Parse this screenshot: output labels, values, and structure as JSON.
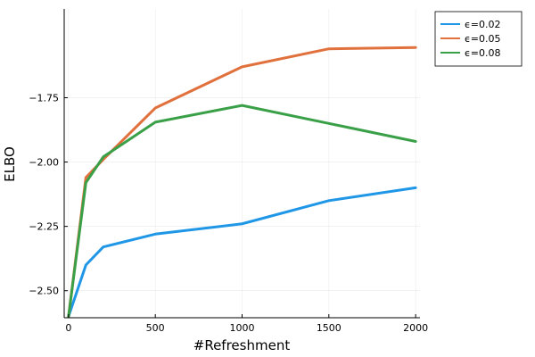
{
  "chart_data": {
    "type": "line",
    "xlabel": "#Refreshment",
    "ylabel": "ELBO",
    "xlim": [
      -25,
      2025
    ],
    "ylim": [
      -2.605,
      -1.405
    ],
    "x_ticks": [
      0,
      500,
      1000,
      1500,
      2000
    ],
    "x_tick_labels": [
      "0",
      "500",
      "1000",
      "1500",
      "2000"
    ],
    "y_ticks": [
      -2.5,
      -2.25,
      -2.0,
      -1.75
    ],
    "y_tick_labels": [
      "−2.50",
      "−2.25",
      "−2.00",
      "−1.75"
    ],
    "grid": true,
    "legend_position": "outside-top-right",
    "series": [
      {
        "name": "ϵ=0.02",
        "color": "#1f97e6",
        "x": [
          0,
          100,
          200,
          500,
          1000,
          1500,
          2000
        ],
        "y": [
          -2.6,
          -2.4,
          -2.33,
          -2.28,
          -2.24,
          -2.15,
          -2.1
        ]
      },
      {
        "name": "ϵ=0.05",
        "color": "#e0703c",
        "x": [
          0,
          100,
          200,
          500,
          1000,
          1500,
          2000
        ],
        "y": [
          -2.6,
          -2.06,
          -1.99,
          -1.79,
          -1.63,
          -1.56,
          -1.555
        ]
      },
      {
        "name": "ϵ=0.08",
        "color": "#3aa048",
        "x": [
          0,
          100,
          200,
          500,
          1000,
          1500,
          2000
        ],
        "y": [
          -2.6,
          -2.08,
          -1.98,
          -1.845,
          -1.78,
          -1.85,
          -1.92
        ]
      }
    ]
  }
}
